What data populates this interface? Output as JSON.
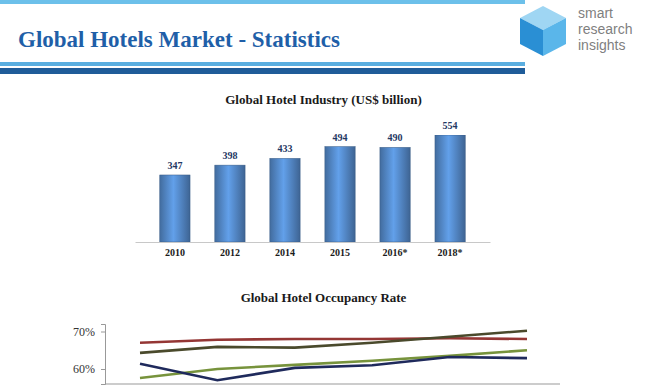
{
  "header": {
    "title": "Global Hotels Market - Statistics",
    "logo_text": [
      "smart",
      "research",
      "insights"
    ]
  },
  "chart_data": [
    {
      "type": "bar",
      "title": "Global Hotel Industry (US$ billion)",
      "categories": [
        "2010",
        "2012",
        "2014",
        "2015",
        "2016*",
        "2018*"
      ],
      "values": [
        347,
        398,
        433,
        494,
        490,
        554
      ],
      "color": "#4f81bd",
      "ylim": [
        0,
        554
      ],
      "data_labels": true,
      "tick_labels": "x"
    },
    {
      "type": "line",
      "title": "Global Hotel Occupancy Rate",
      "categories": [
        null,
        null,
        null,
        null,
        null,
        null
      ],
      "series": [
        {
          "color": "#943634",
          "values": [
            67,
            67.8,
            68,
            68,
            68.2,
            68
          ]
        },
        {
          "color": "#4a4a2c",
          "values": [
            64.3,
            65.9,
            65.7,
            67,
            68.6,
            70.2
          ]
        },
        {
          "color": "#77933c",
          "values": [
            57.6,
            60,
            61.1,
            62.2,
            63.5,
            65
          ]
        },
        {
          "color": "#1f2a5c",
          "values": [
            61.4,
            57,
            60.3,
            61,
            63.2,
            62.9
          ]
        }
      ],
      "ylim": [
        56,
        72
      ],
      "yticks": [
        {
          "value": 60,
          "label": "60%"
        },
        {
          "value": 70,
          "label": "70%"
        }
      ],
      "tick_labels": "y"
    }
  ]
}
